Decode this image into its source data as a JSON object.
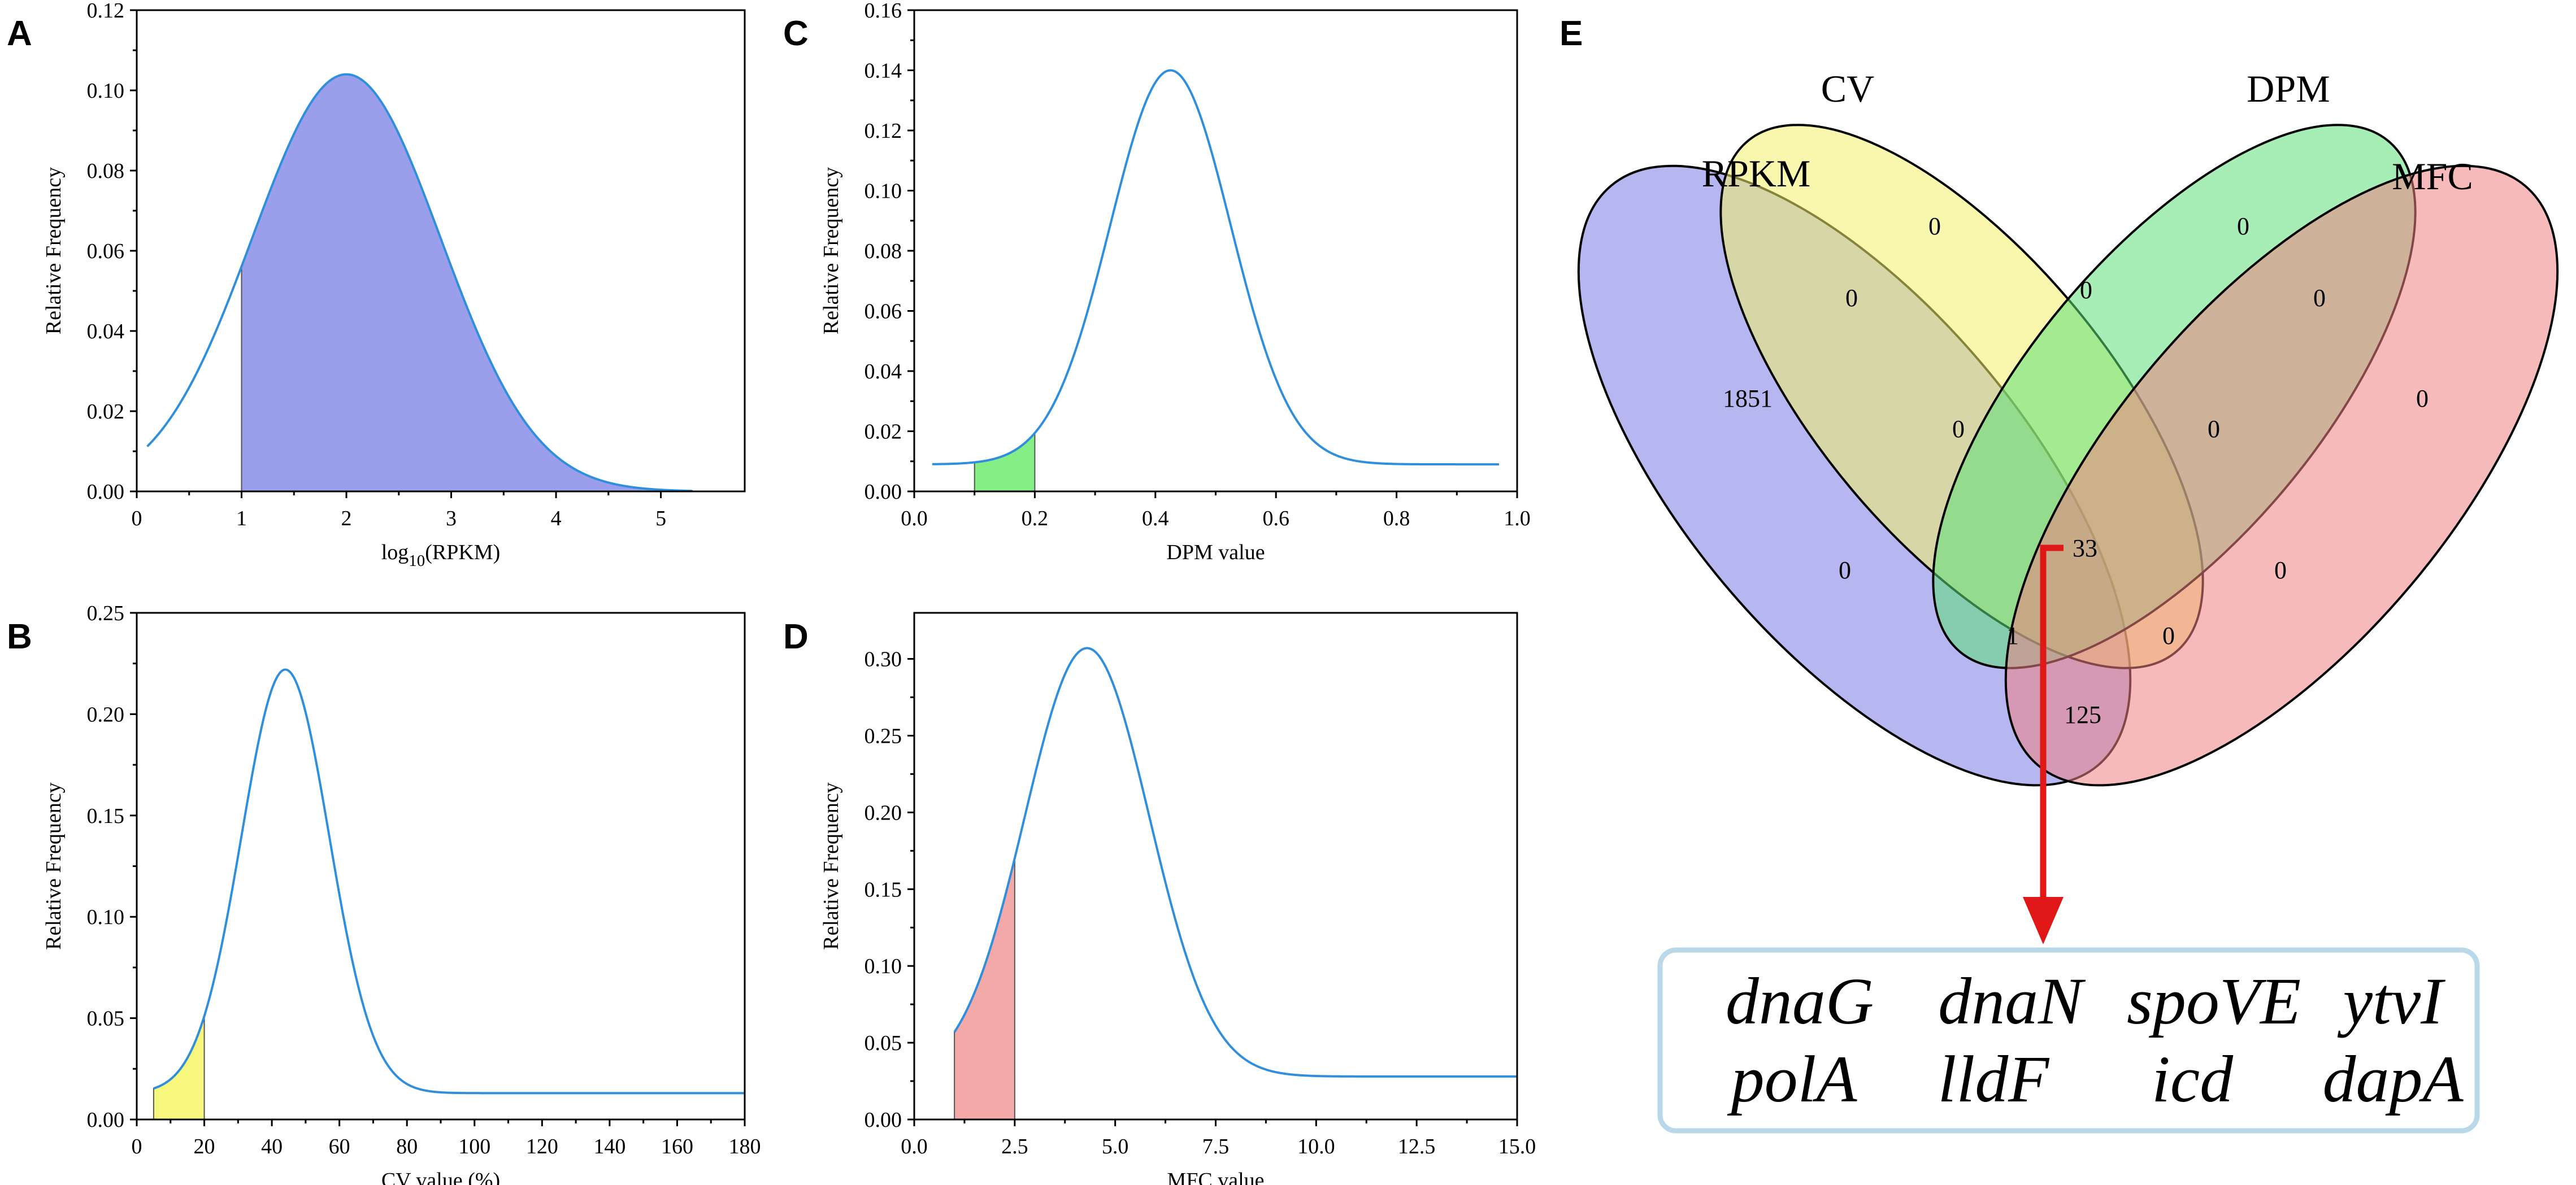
{
  "chart_data": [
    {
      "panel": "A",
      "type": "area",
      "xlabel_main": "log",
      "xlabel_sub": "10",
      "xlabel_rest": "(RPKM)",
      "ylabel": "Relative Frequency",
      "xlim": [
        0,
        5.8
      ],
      "ylim": [
        0,
        0.12
      ],
      "xticks": [
        0,
        1,
        2,
        3,
        4,
        5
      ],
      "xtick_labels": [
        "0",
        "1",
        "2",
        "3",
        "4",
        "5"
      ],
      "yticks": [
        0,
        0.02,
        0.04,
        0.06,
        0.08,
        0.1,
        0.12
      ],
      "ytick_labels": [
        "0.00",
        "0.02",
        "0.04",
        "0.06",
        "0.08",
        "0.10",
        "0.12"
      ],
      "curve": {
        "type": "gaussian",
        "mean": 2.0,
        "sd": 0.9,
        "peak": 0.104,
        "baseline": 0.0,
        "x_start": 0.1,
        "x_end": 5.3
      },
      "shaded_range": [
        1.0,
        5.3
      ],
      "shade_color": "#9b9eea"
    },
    {
      "panel": "B",
      "type": "area",
      "xlabel": "CV value (%)",
      "ylabel": "Relative Frequency",
      "xlim": [
        0,
        180
      ],
      "ylim": [
        0,
        0.25
      ],
      "xticks": [
        0,
        20,
        40,
        60,
        80,
        100,
        120,
        140,
        160,
        180
      ],
      "xtick_labels": [
        "0",
        "20",
        "40",
        "60",
        "80",
        "100",
        "120",
        "140",
        "160",
        "180"
      ],
      "yticks": [
        0,
        0.05,
        0.1,
        0.15,
        0.2,
        0.25
      ],
      "ytick_labels": [
        "0.00",
        "0.05",
        "0.10",
        "0.15",
        "0.20",
        "0.25"
      ],
      "curve": {
        "type": "gaussian",
        "mean": 44,
        "sd": 13,
        "peak": 0.222,
        "baseline": 0.013,
        "x_start": 5,
        "x_end": 180
      },
      "shaded_range": [
        5,
        20
      ],
      "shade_color": "#f7f77d"
    },
    {
      "panel": "C",
      "type": "area",
      "xlabel": "DPM value",
      "ylabel": "Relative Frequency",
      "xlim": [
        0,
        1.0
      ],
      "ylim": [
        0,
        0.16
      ],
      "xticks": [
        0,
        0.2,
        0.4,
        0.6,
        0.8,
        1.0
      ],
      "xtick_labels": [
        "0.0",
        "0.2",
        "0.4",
        "0.6",
        "0.8",
        "1.0"
      ],
      "yticks": [
        0,
        0.02,
        0.04,
        0.06,
        0.08,
        0.1,
        0.12,
        0.14,
        0.16
      ],
      "ytick_labels": [
        "0.00",
        "0.02",
        "0.04",
        "0.06",
        "0.08",
        "0.10",
        "0.12",
        "0.14",
        "0.16"
      ],
      "curve": {
        "type": "gaussian",
        "mean": 0.425,
        "sd": 0.1,
        "peak": 0.14,
        "baseline": 0.009,
        "x_start": 0.03,
        "x_end": 0.97
      },
      "shaded_range": [
        0.1,
        0.2
      ],
      "shade_color": "#85ef85"
    },
    {
      "panel": "D",
      "type": "area",
      "xlabel": "MFC value",
      "ylabel": "Relative Frequency",
      "xlim": [
        0,
        15
      ],
      "ylim": [
        0,
        0.33
      ],
      "xticks": [
        0,
        2.5,
        5,
        7.5,
        10,
        12.5,
        15
      ],
      "xtick_labels": [
        "0.0",
        "2.5",
        "5.0",
        "7.5",
        "10.0",
        "12.5",
        "15.0"
      ],
      "yticks": [
        0,
        0.05,
        0.1,
        0.15,
        0.2,
        0.25,
        0.3
      ],
      "ytick_labels": [
        "0.00",
        "0.05",
        "0.10",
        "0.15",
        "0.20",
        "0.25",
        "0.30"
      ],
      "curve": {
        "type": "gaussian",
        "mean": 4.3,
        "sd": 1.55,
        "peak": 0.307,
        "baseline": 0.028,
        "x_start": 1.0,
        "x_end": 15
      },
      "shaded_range": [
        1.0,
        2.5
      ],
      "shade_color": "#f4a9a9"
    },
    {
      "panel": "E",
      "type": "venn",
      "sets": [
        {
          "name": "RPKM",
          "color": "#7a7ae4"
        },
        {
          "name": "CV",
          "color": "#f3f06a"
        },
        {
          "name": "DPM",
          "color": "#5fe07a"
        },
        {
          "name": "MFC",
          "color": "#ee8282"
        }
      ],
      "regions": [
        {
          "sets": "RPKM",
          "value": "1851"
        },
        {
          "sets": "CV",
          "value": "0"
        },
        {
          "sets": "DPM",
          "value": "0"
        },
        {
          "sets": "MFC",
          "value": "0"
        },
        {
          "sets": "RPKM+CV",
          "value": "0"
        },
        {
          "sets": "CV+DPM",
          "value": "0"
        },
        {
          "sets": "DPM+MFC",
          "value": "0"
        },
        {
          "sets": "RPKM+CV+DPM",
          "value": "0"
        },
        {
          "sets": "CV+DPM+MFC",
          "value": "0"
        },
        {
          "sets": "RPKM+DPM",
          "value": "0"
        },
        {
          "sets": "CV+MFC",
          "value": "0"
        },
        {
          "sets": "RPKM+CV+DPM+MFC",
          "value": "33"
        },
        {
          "sets": "RPKM+DPM+MFC",
          "value": "1"
        },
        {
          "sets": "RPKM+CV+MFC",
          "value": "0"
        },
        {
          "sets": "RPKM+MFC",
          "value": "125"
        }
      ],
      "genes": [
        "dnaG",
        "dnaN",
        "spoVE",
        "ytvI",
        "polA",
        "lldF",
        "icd",
        "dapA"
      ],
      "arrow_color": "#e01818",
      "box_border_color": "#b9d8ea"
    }
  ],
  "curve_color": "#2f8fdc"
}
